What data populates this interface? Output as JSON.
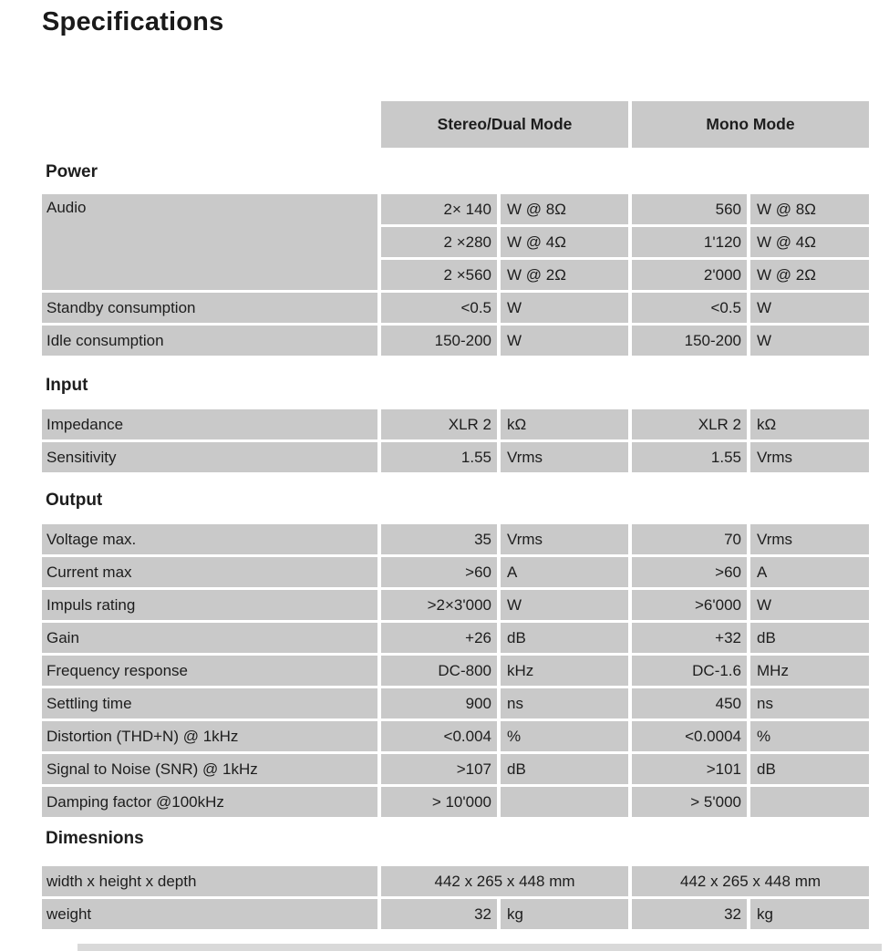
{
  "page": {
    "title": "Specifications"
  },
  "colors": {
    "cell_bg": "#c9c9c9",
    "header_bg": "#c9c9c9",
    "text": "#1d1d1d",
    "partial_row_bg": "#d9d9d9"
  },
  "table": {
    "column_headers": {
      "stereo": "Stereo/Dual Mode",
      "mono": "Mono Mode"
    },
    "sections": [
      {
        "id": "power",
        "title": "Power",
        "rows": [
          {
            "label": "Audio",
            "label_rowspan": 3,
            "stereo_value": "2× 140",
            "stereo_unit": "W @ 8Ω",
            "mono_value": "560",
            "mono_unit": "W @ 8Ω"
          },
          {
            "label": null,
            "stereo_value": "2 ×280",
            "stereo_unit": "W @ 4Ω",
            "mono_value": "1'120",
            "mono_unit": "W @ 4Ω"
          },
          {
            "label": null,
            "stereo_value": "2 ×560",
            "stereo_unit": "W @ 2Ω",
            "mono_value": "2'000",
            "mono_unit": "W @ 2Ω"
          },
          {
            "label": "Standby consumption",
            "stereo_value": "<0.5",
            "stereo_unit": "W",
            "mono_value": "<0.5",
            "mono_unit": "W"
          },
          {
            "label": "Idle consumption",
            "stereo_value": "150-200",
            "stereo_unit": "W",
            "mono_value": "150-200",
            "mono_unit": "W"
          }
        ]
      },
      {
        "id": "input",
        "title": "Input",
        "rows": [
          {
            "label": "Impedance",
            "stereo_value": "XLR 2",
            "stereo_unit": "kΩ",
            "mono_value": "XLR 2",
            "mono_unit": "kΩ"
          },
          {
            "label": "Sensitivity",
            "stereo_value": "1.55",
            "stereo_unit": "Vrms",
            "mono_value": "1.55",
            "mono_unit": "Vrms"
          }
        ]
      },
      {
        "id": "output",
        "title": "Output",
        "rows": [
          {
            "label": "Voltage max.",
            "stereo_value": "35",
            "stereo_unit": "Vrms",
            "mono_value": "70",
            "mono_unit": "Vrms"
          },
          {
            "label": "Current max",
            "stereo_value": ">60",
            "stereo_unit": "A",
            "mono_value": ">60",
            "mono_unit": "A"
          },
          {
            "label": "Impuls rating",
            "stereo_value": ">2×3'000",
            "stereo_unit": "W",
            "mono_value": ">6'000",
            "mono_unit": "W"
          },
          {
            "label": "Gain",
            "stereo_value": "+26",
            "stereo_unit": "dB",
            "mono_value": "+32",
            "mono_unit": "dB"
          },
          {
            "label": "Frequency response",
            "stereo_value": "DC-800",
            "stereo_unit": "kHz",
            "mono_value": "DC-1.6",
            "mono_unit": "MHz"
          },
          {
            "label": "Settling time",
            "stereo_value": "900",
            "stereo_unit": "ns",
            "mono_value": "450",
            "mono_unit": "ns"
          },
          {
            "label": "Distortion (THD+N) @ 1kHz",
            "stereo_value": "<0.004",
            "stereo_unit": "%",
            "mono_value": "<0.0004",
            "mono_unit": "%"
          },
          {
            "label": "Signal to Noise (SNR) @ 1kHz",
            "stereo_value": ">107",
            "stereo_unit": "dB",
            "mono_value": ">101",
            "mono_unit": "dB"
          },
          {
            "label": "Damping factor @100kHz",
            "stereo_value": "> 10'000",
            "stereo_unit": "",
            "mono_value": "> 5'000",
            "mono_unit": ""
          }
        ]
      },
      {
        "id": "dimensions",
        "title": "Dimesnions",
        "rows": [
          {
            "label": "width x height x depth",
            "merged": true,
            "stereo_value": "442 x 265 x 448 mm",
            "mono_value": "442 x 265 x 448 mm"
          },
          {
            "label": "weight",
            "stereo_value": "32",
            "stereo_unit": "kg",
            "mono_value": "32",
            "mono_unit": "kg"
          }
        ]
      }
    ]
  }
}
